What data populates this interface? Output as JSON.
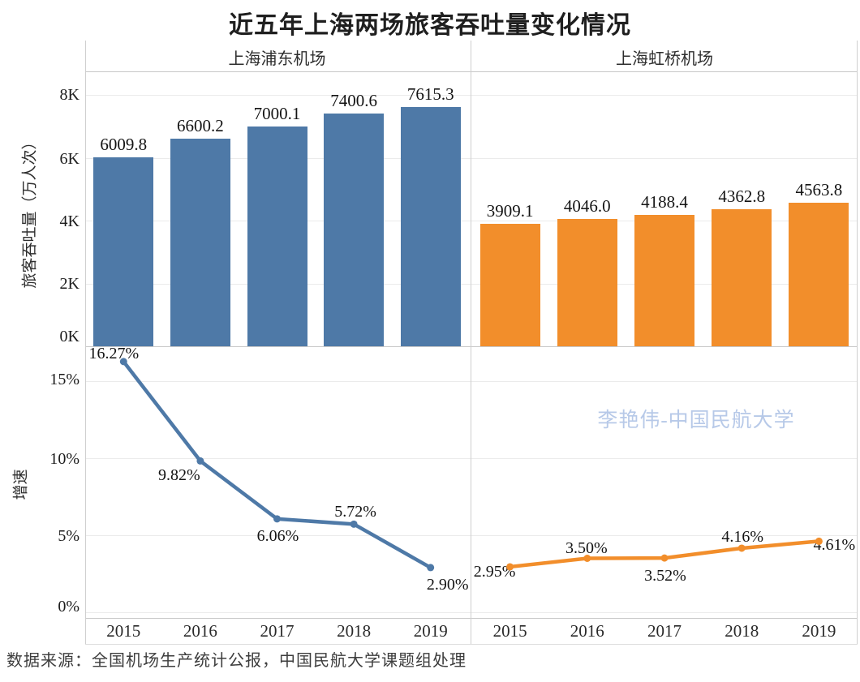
{
  "title": "近五年上海两场旅客吞吐量变化情况",
  "column_headers": [
    "上海浦东机场",
    "上海虹桥机场"
  ],
  "watermark": "李艳伟-中国民航大学",
  "footer": "数据来源：全国机场生产统计公报，中国民航大学课题组处理",
  "colors": {
    "pudong": "#4e79a7",
    "hongqiao": "#f28e2b",
    "watermark": "#b7c9e8",
    "gridline": "#ebebeb",
    "border": "#cfcfcf"
  },
  "axes": {
    "throughput_label": "旅客吞吐量（万人次）",
    "throughput_ticks": [
      "8K",
      "6K",
      "4K",
      "2K",
      "0K"
    ],
    "growth_label": "增速",
    "growth_ticks": [
      "15%",
      "10%",
      "5%",
      "0%"
    ],
    "years": [
      "2015",
      "2016",
      "2017",
      "2018",
      "2019"
    ]
  },
  "chart_data": [
    {
      "type": "bar",
      "name": "上海浦东机场-旅客吞吐量",
      "panel": "left",
      "categories": [
        "2015",
        "2016",
        "2017",
        "2018",
        "2019"
      ],
      "values": [
        6009.8,
        6600.2,
        7000.1,
        7400.6,
        7615.3
      ],
      "labels": [
        "6009.8",
        "6600.2",
        "7000.1",
        "7400.6",
        "7615.3"
      ],
      "ylabel": "旅客吞吐量（万人次）",
      "ylim": [
        0,
        8000
      ],
      "color": "#4e79a7"
    },
    {
      "type": "bar",
      "name": "上海虹桥机场-旅客吞吐量",
      "panel": "right",
      "categories": [
        "2015",
        "2016",
        "2017",
        "2018",
        "2019"
      ],
      "values": [
        3909.1,
        4046.0,
        4188.4,
        4362.8,
        4563.8
      ],
      "labels": [
        "3909.1",
        "4046.0",
        "4188.4",
        "4362.8",
        "4563.8"
      ],
      "ylabel": "旅客吞吐量（万人次）",
      "ylim": [
        0,
        8000
      ],
      "color": "#f28e2b"
    },
    {
      "type": "line",
      "name": "上海浦东机场-增速",
      "panel": "left",
      "categories": [
        "2015",
        "2016",
        "2017",
        "2018",
        "2019"
      ],
      "values": [
        16.27,
        9.82,
        6.06,
        5.72,
        2.9
      ],
      "labels": [
        "16.27%",
        "9.82%",
        "6.06%",
        "5.72%",
        "2.90%"
      ],
      "ylabel": "增速",
      "ylim": [
        0,
        17.1
      ],
      "color": "#4e79a7"
    },
    {
      "type": "line",
      "name": "上海虹桥机场-增速",
      "panel": "right",
      "categories": [
        "2015",
        "2016",
        "2017",
        "2018",
        "2019"
      ],
      "values": [
        2.95,
        3.5,
        3.52,
        4.16,
        4.61
      ],
      "labels": [
        "2.95%",
        "3.50%",
        "3.52%",
        "4.16%",
        "4.61%"
      ],
      "ylabel": "增速",
      "ylim": [
        0,
        17.1
      ],
      "color": "#f28e2b"
    }
  ]
}
